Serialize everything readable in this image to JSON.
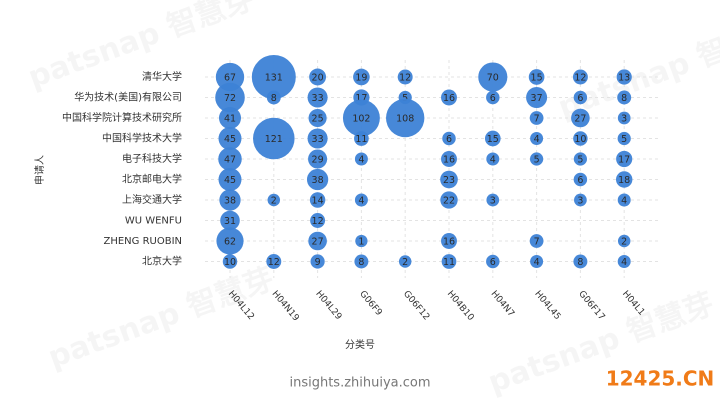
{
  "chart_data": {
    "type": "bubble",
    "xlabel": "分类号",
    "ylabel": "申请人",
    "categories": [
      "H04L12",
      "H04N19",
      "H04L29",
      "G06F9",
      "G06F12",
      "H04B10",
      "H04N7",
      "H04L45",
      "G06F17",
      "H04L1"
    ],
    "color": "#3d82d6",
    "grid": true,
    "series": [
      {
        "name": "清华大学",
        "values": [
          67,
          131,
          20,
          19,
          12,
          null,
          70,
          15,
          12,
          13
        ]
      },
      {
        "name": "华为技术(美国)有限公司",
        "values": [
          72,
          8,
          33,
          17,
          5,
          16,
          6,
          37,
          6,
          8
        ]
      },
      {
        "name": "中国科学院计算技术研究所",
        "values": [
          41,
          null,
          25,
          102,
          108,
          null,
          null,
          7,
          27,
          3
        ]
      },
      {
        "name": "中国科学技术大学",
        "values": [
          45,
          121,
          33,
          11,
          null,
          6,
          15,
          4,
          10,
          5
        ]
      },
      {
        "name": "电子科技大学",
        "values": [
          47,
          null,
          29,
          4,
          null,
          16,
          4,
          5,
          5,
          17
        ]
      },
      {
        "name": "北京邮电大学",
        "values": [
          45,
          null,
          38,
          null,
          null,
          23,
          null,
          null,
          6,
          18
        ]
      },
      {
        "name": "上海交通大学",
        "values": [
          38,
          2,
          14,
          4,
          null,
          22,
          3,
          null,
          3,
          4
        ]
      },
      {
        "name": "WU WENFU",
        "values": [
          31,
          null,
          12,
          null,
          null,
          null,
          null,
          null,
          null,
          null
        ]
      },
      {
        "name": "ZHENG RUOBIN",
        "values": [
          62,
          null,
          27,
          1,
          null,
          16,
          null,
          7,
          null,
          2
        ]
      },
      {
        "name": "北京大学",
        "values": [
          10,
          12,
          9,
          8,
          2,
          11,
          6,
          4,
          8,
          4
        ]
      }
    ]
  },
  "footer": {
    "source": "insights.zhihuiya.com",
    "badge": "12425.CN",
    "watermark": "patsnap 智慧芽"
  }
}
